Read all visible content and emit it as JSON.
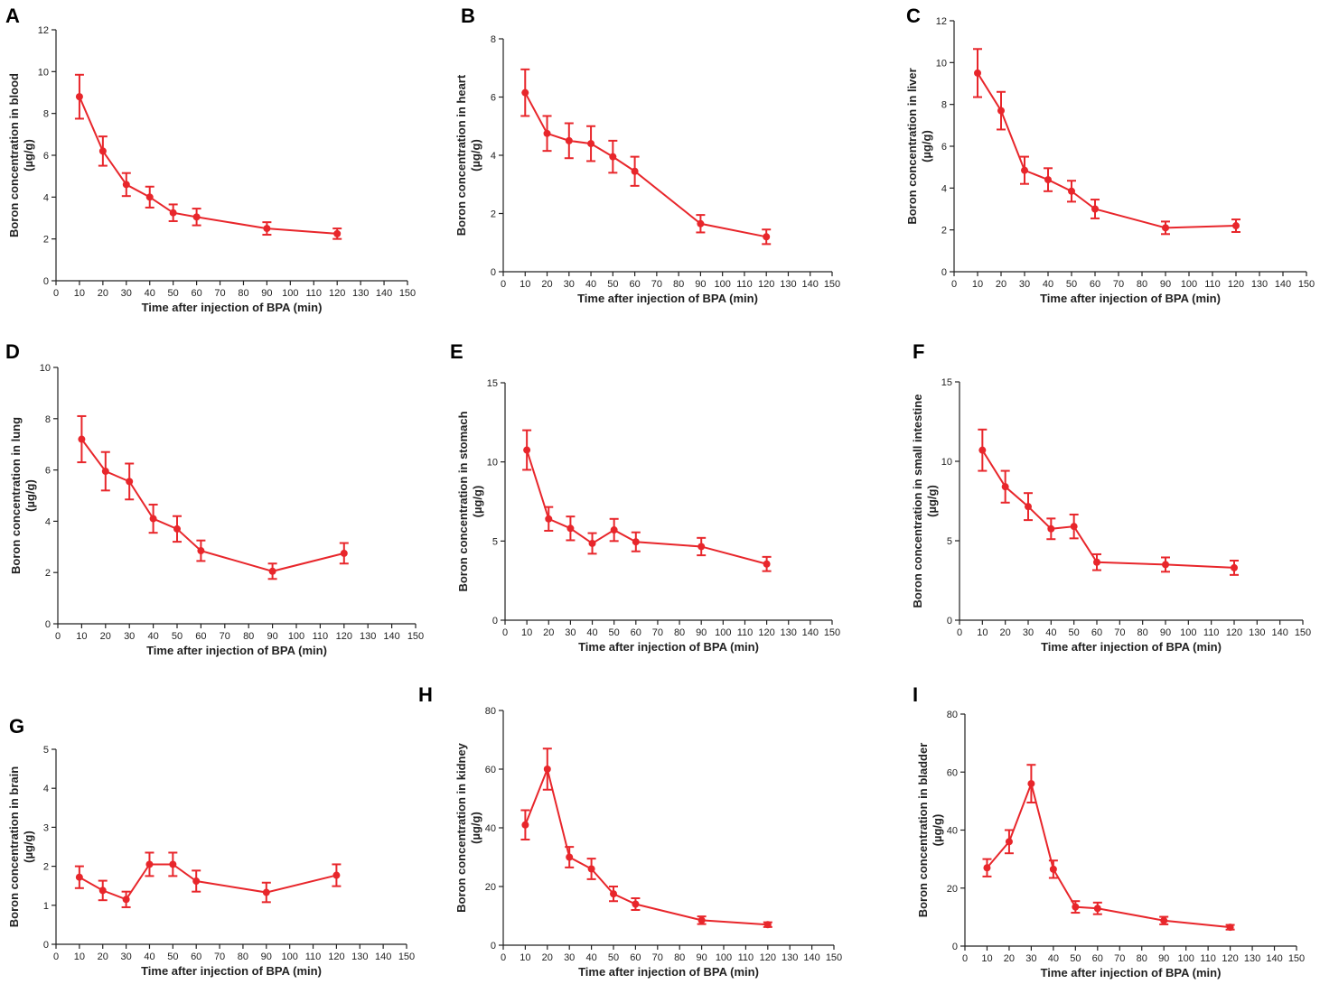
{
  "style": {
    "series_color": "#e8262b",
    "axis_color": "#222222"
  },
  "chart_data": [
    {
      "type": "line",
      "panel": "A",
      "title": "",
      "xlabel": "Time after injection of BPA (min)",
      "ylabel": [
        "Boron concentration in blood",
        "(µg/g)"
      ],
      "xlim": [
        0,
        150
      ],
      "ylim": [
        0,
        12
      ],
      "xticks": [
        0,
        10,
        20,
        30,
        40,
        50,
        60,
        70,
        80,
        90,
        100,
        110,
        120,
        130,
        140,
        150
      ],
      "yticks": [
        0,
        2,
        4,
        6,
        8,
        10,
        12
      ],
      "series": [
        {
          "name": "blood",
          "x": [
            10,
            20,
            30,
            40,
            50,
            60,
            90,
            120
          ],
          "y": [
            8.8,
            6.2,
            4.6,
            4.0,
            3.25,
            3.05,
            2.5,
            2.25
          ],
          "err": [
            1.05,
            0.7,
            0.55,
            0.5,
            0.4,
            0.4,
            0.3,
            0.25
          ]
        }
      ]
    },
    {
      "type": "line",
      "panel": "B",
      "title": "",
      "xlabel": "Time after injection of BPA (min)",
      "ylabel": [
        "Boron concentration in heart",
        "(µg/g)"
      ],
      "xlim": [
        0,
        150
      ],
      "ylim": [
        0,
        8
      ],
      "xticks": [
        0,
        10,
        20,
        30,
        40,
        50,
        60,
        70,
        80,
        90,
        100,
        110,
        120,
        130,
        140,
        150
      ],
      "yticks": [
        0,
        2,
        4,
        6,
        8
      ],
      "series": [
        {
          "name": "heart",
          "x": [
            10,
            20,
            30,
            40,
            50,
            60,
            90,
            120
          ],
          "y": [
            6.15,
            4.75,
            4.5,
            4.4,
            3.95,
            3.45,
            1.65,
            1.2
          ],
          "err": [
            0.8,
            0.6,
            0.6,
            0.6,
            0.55,
            0.5,
            0.3,
            0.25
          ]
        }
      ]
    },
    {
      "type": "line",
      "panel": "C",
      "title": "",
      "xlabel": "Time after injection of BPA (min)",
      "ylabel": [
        "Boron concentration in liver",
        "(µg/g)"
      ],
      "xlim": [
        0,
        150
      ],
      "ylim": [
        0,
        12
      ],
      "xticks": [
        0,
        10,
        20,
        30,
        40,
        50,
        60,
        70,
        80,
        90,
        100,
        110,
        120,
        130,
        140,
        150
      ],
      "yticks": [
        0,
        2,
        4,
        6,
        8,
        10,
        12
      ],
      "series": [
        {
          "name": "liver",
          "x": [
            10,
            20,
            30,
            40,
            50,
            60,
            90,
            120
          ],
          "y": [
            9.5,
            7.7,
            4.85,
            4.4,
            3.85,
            3.0,
            2.1,
            2.2
          ],
          "err": [
            1.15,
            0.9,
            0.65,
            0.55,
            0.5,
            0.45,
            0.3,
            0.3
          ]
        }
      ]
    },
    {
      "type": "line",
      "panel": "D",
      "title": "",
      "xlabel": "Time after injection of BPA (min)",
      "ylabel": [
        "Boron concentration in lung",
        "(µg/g)"
      ],
      "xlim": [
        0,
        150
      ],
      "ylim": [
        0,
        10
      ],
      "xticks": [
        0,
        10,
        20,
        30,
        40,
        50,
        60,
        70,
        80,
        90,
        100,
        110,
        120,
        130,
        140,
        150
      ],
      "yticks": [
        0,
        2,
        4,
        6,
        8,
        10
      ],
      "series": [
        {
          "name": "lung",
          "x": [
            10,
            20,
            30,
            40,
            50,
            60,
            90,
            120
          ],
          "y": [
            7.2,
            5.95,
            5.55,
            4.1,
            3.7,
            2.85,
            2.05,
            2.75
          ],
          "err": [
            0.9,
            0.75,
            0.7,
            0.55,
            0.5,
            0.4,
            0.3,
            0.4
          ]
        }
      ]
    },
    {
      "type": "line",
      "panel": "E",
      "title": "",
      "xlabel": "Time after injection of BPA (min)",
      "ylabel": [
        "Boron concentration in stomach",
        "(µg/g)"
      ],
      "xlim": [
        0,
        150
      ],
      "ylim": [
        0,
        15
      ],
      "xticks": [
        0,
        10,
        20,
        30,
        40,
        50,
        60,
        70,
        80,
        90,
        100,
        110,
        120,
        130,
        140,
        150
      ],
      "yticks": [
        0,
        5,
        10,
        15
      ],
      "series": [
        {
          "name": "stomach",
          "x": [
            10,
            20,
            30,
            40,
            50,
            60,
            90,
            120
          ],
          "y": [
            10.75,
            6.4,
            5.8,
            4.85,
            5.7,
            4.95,
            4.65,
            3.55
          ],
          "err": [
            1.25,
            0.75,
            0.75,
            0.65,
            0.7,
            0.6,
            0.55,
            0.45
          ]
        }
      ]
    },
    {
      "type": "line",
      "panel": "F",
      "title": "",
      "xlabel": "Time after injection of BPA (min)",
      "ylabel": [
        "Boron concentration in small intestine",
        "(µg/g)"
      ],
      "xlim": [
        0,
        150
      ],
      "ylim": [
        0,
        15
      ],
      "xticks": [
        0,
        10,
        20,
        30,
        40,
        50,
        60,
        70,
        80,
        90,
        100,
        110,
        120,
        130,
        140,
        150
      ],
      "yticks": [
        0,
        5,
        10,
        15
      ],
      "series": [
        {
          "name": "small intestine",
          "x": [
            10,
            20,
            30,
            40,
            50,
            60,
            90,
            120
          ],
          "y": [
            10.7,
            8.4,
            7.15,
            5.75,
            5.9,
            3.65,
            3.5,
            3.3
          ],
          "err": [
            1.3,
            1.0,
            0.85,
            0.65,
            0.75,
            0.5,
            0.45,
            0.45
          ]
        }
      ]
    },
    {
      "type": "line",
      "panel": "G",
      "title": "",
      "xlabel": "Time after injection of BPA (min)",
      "ylabel": [
        "Boron concentration in brain",
        "(µg/g)"
      ],
      "xlim": [
        0,
        150
      ],
      "ylim": [
        0,
        5
      ],
      "xticks": [
        0,
        10,
        20,
        30,
        40,
        50,
        60,
        70,
        80,
        90,
        100,
        110,
        120,
        130,
        140,
        150
      ],
      "yticks": [
        0,
        1,
        2,
        3,
        4,
        5
      ],
      "series": [
        {
          "name": "brain",
          "x": [
            10,
            20,
            30,
            40,
            50,
            60,
            90,
            120
          ],
          "y": [
            1.72,
            1.38,
            1.15,
            2.05,
            2.05,
            1.62,
            1.33,
            1.77
          ],
          "err": [
            0.28,
            0.25,
            0.2,
            0.3,
            0.3,
            0.27,
            0.25,
            0.28
          ]
        }
      ]
    },
    {
      "type": "line",
      "panel": "H",
      "title": "",
      "xlabel": "Time after injection of BPA (min)",
      "ylabel": [
        "Boron concentration in kidney",
        "(µg/g)"
      ],
      "xlim": [
        0,
        150
      ],
      "ylim": [
        0,
        80
      ],
      "xticks": [
        0,
        10,
        20,
        30,
        40,
        50,
        60,
        70,
        80,
        90,
        100,
        110,
        120,
        130,
        140,
        150
      ],
      "yticks": [
        0,
        20,
        40,
        60,
        80
      ],
      "series": [
        {
          "name": "kidney",
          "x": [
            10,
            20,
            30,
            40,
            50,
            60,
            90,
            120
          ],
          "y": [
            41,
            60,
            30,
            26,
            17.5,
            14,
            8.5,
            7
          ],
          "err": [
            5,
            7,
            3.5,
            3.5,
            2.5,
            2,
            1.3,
            0.8
          ]
        }
      ]
    },
    {
      "type": "line",
      "panel": "I",
      "title": "",
      "xlabel": "Time after injection of BPA (min)",
      "ylabel": [
        "Boron concentration in bladder",
        "(µg/g)"
      ],
      "xlim": [
        0,
        150
      ],
      "ylim": [
        0,
        80
      ],
      "xticks": [
        0,
        10,
        20,
        30,
        40,
        50,
        60,
        70,
        80,
        90,
        100,
        110,
        120,
        130,
        140,
        150
      ],
      "yticks": [
        0,
        20,
        40,
        60,
        80
      ],
      "series": [
        {
          "name": "bladder",
          "x": [
            10,
            20,
            30,
            40,
            50,
            60,
            90,
            120
          ],
          "y": [
            27,
            36,
            56,
            26.5,
            13.5,
            13,
            8.8,
            6.5
          ],
          "err": [
            3,
            4,
            6.5,
            3,
            2,
            2,
            1.3,
            0.8
          ]
        }
      ]
    }
  ]
}
